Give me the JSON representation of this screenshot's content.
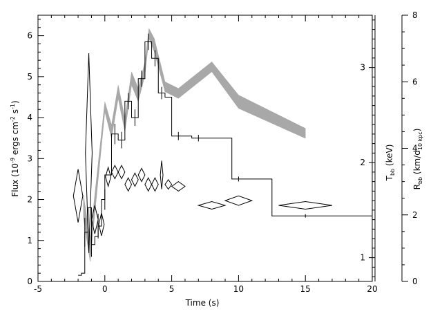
{
  "chart_data": {
    "type": "line",
    "title": "",
    "xlabel": "Time (s)",
    "xlim": [
      -5,
      20
    ],
    "x_ticks": [
      "-5",
      "0",
      "5",
      "10",
      "15",
      "20"
    ],
    "ylabel_left": {
      "main": "Flux (10",
      "sup1": "-9",
      "mid": " ergs cm",
      "sup2": "-2",
      "mid2": " s",
      "sup3": "-1",
      "end": ")"
    },
    "ylim_left": [
      0,
      6.5
    ],
    "y_ticks_left": [
      "0",
      "1",
      "2",
      "3",
      "4",
      "5",
      "6"
    ],
    "ylabel_t": {
      "main": "T",
      "sub": "bb",
      "end": " (keV)"
    },
    "ylim_t": [
      0.75,
      3.55
    ],
    "y_ticks_t": [
      "1",
      "2",
      "3"
    ],
    "ylabel_r": {
      "main": "R",
      "sub": "bb",
      "mid": " (km/d",
      "sub2": "10 kpc",
      "end": ")"
    },
    "ylim_r": [
      0,
      8
    ],
    "y_ticks_r": [
      "0",
      "2",
      "4",
      "6",
      "8"
    ],
    "series": [
      {
        "kind": "flux-histogram",
        "color": "#000000",
        "bins": [
          [
            -2.0,
            -1.75,
            0.15
          ],
          [
            -1.75,
            -1.5,
            0.2
          ],
          [
            -1.5,
            -1.25,
            1.2
          ],
          [
            -1.25,
            -1.0,
            1.8
          ],
          [
            -1.0,
            -0.75,
            0.9
          ],
          [
            -0.75,
            -0.5,
            1.1
          ],
          [
            -0.5,
            -0.25,
            1.35
          ],
          [
            -0.25,
            0.0,
            2.0
          ],
          [
            0.0,
            0.5,
            2.6
          ],
          [
            0.5,
            1.0,
            3.6
          ],
          [
            1.0,
            1.5,
            3.45
          ],
          [
            1.5,
            2.0,
            4.4
          ],
          [
            2.0,
            2.5,
            4.0
          ],
          [
            2.5,
            3.0,
            4.95
          ],
          [
            3.0,
            3.5,
            5.85
          ],
          [
            3.5,
            4.0,
            5.45
          ],
          [
            4.0,
            4.5,
            4.6
          ],
          [
            4.5,
            5.0,
            4.5
          ],
          [
            5.0,
            6.5,
            3.55
          ],
          [
            6.5,
            8.0,
            3.5
          ],
          [
            8.0,
            9.5,
            3.5
          ],
          [
            9.5,
            12.5,
            2.5
          ],
          [
            12.5,
            20.0,
            1.6
          ]
        ],
        "errors": [
          [
            -1.5,
            1.2,
            0.35
          ],
          [
            -1.0,
            0.9,
            0.3
          ],
          [
            -0.5,
            1.35,
            0.3
          ],
          [
            0.0,
            2.0,
            0.25
          ],
          [
            0.75,
            3.6,
            0.25
          ],
          [
            1.25,
            3.45,
            0.2
          ],
          [
            1.75,
            4.4,
            0.2
          ],
          [
            2.25,
            4.0,
            0.2
          ],
          [
            2.75,
            4.95,
            0.2
          ],
          [
            3.25,
            5.85,
            0.2
          ],
          [
            3.75,
            5.45,
            0.2
          ],
          [
            4.25,
            4.6,
            0.15
          ],
          [
            5.5,
            3.55,
            0.1
          ],
          [
            7.0,
            3.5,
            0.08
          ],
          [
            10.0,
            2.5,
            0.06
          ],
          [
            15.0,
            1.6,
            0.04
          ]
        ]
      },
      {
        "kind": "radius-band",
        "axis": "r",
        "color": "#a8a8a8",
        "points": [
          [
            -1.6,
            1.9,
            2.6
          ],
          [
            -1.1,
            0.6,
            1.3
          ],
          [
            0.0,
            5.1,
            5.4
          ],
          [
            0.5,
            4.3,
            4.7
          ],
          [
            1.0,
            5.5,
            5.9
          ],
          [
            1.5,
            4.5,
            4.9
          ],
          [
            2.0,
            5.9,
            6.3
          ],
          [
            2.5,
            5.4,
            5.8
          ],
          [
            3.0,
            6.2,
            6.6
          ],
          [
            3.3,
            7.3,
            7.6
          ],
          [
            3.7,
            6.9,
            7.3
          ],
          [
            4.5,
            5.7,
            6.0
          ],
          [
            5.5,
            5.5,
            5.8
          ],
          [
            8.0,
            6.3,
            6.6
          ],
          [
            10.0,
            5.2,
            5.6
          ],
          [
            15.0,
            4.3,
            4.6
          ]
        ]
      },
      {
        "kind": "temperature-diamonds",
        "axis": "t",
        "color": "#000000",
        "points": [
          [
            -2.0,
            1.65,
            0.35,
            0.28
          ],
          [
            -1.2,
            2.1,
            0.25,
            1.05
          ],
          [
            -0.75,
            1.4,
            0.25,
            0.15
          ],
          [
            -0.25,
            1.35,
            0.2,
            0.12
          ],
          [
            0.25,
            1.85,
            0.2,
            0.1
          ],
          [
            0.75,
            1.9,
            0.25,
            0.07
          ],
          [
            1.25,
            1.9,
            0.25,
            0.07
          ],
          [
            1.75,
            1.77,
            0.25,
            0.07
          ],
          [
            2.25,
            1.82,
            0.25,
            0.07
          ],
          [
            2.75,
            1.87,
            0.25,
            0.07
          ],
          [
            3.25,
            1.77,
            0.25,
            0.07
          ],
          [
            3.75,
            1.77,
            0.25,
            0.07
          ],
          [
            4.25,
            1.87,
            0.1,
            0.15
          ],
          [
            4.75,
            1.77,
            0.25,
            0.05
          ],
          [
            5.5,
            1.75,
            0.5,
            0.05
          ],
          [
            8.0,
            1.55,
            1.0,
            0.04
          ],
          [
            10.0,
            1.6,
            1.0,
            0.05
          ],
          [
            15.0,
            1.55,
            2.0,
            0.04
          ]
        ]
      }
    ]
  }
}
